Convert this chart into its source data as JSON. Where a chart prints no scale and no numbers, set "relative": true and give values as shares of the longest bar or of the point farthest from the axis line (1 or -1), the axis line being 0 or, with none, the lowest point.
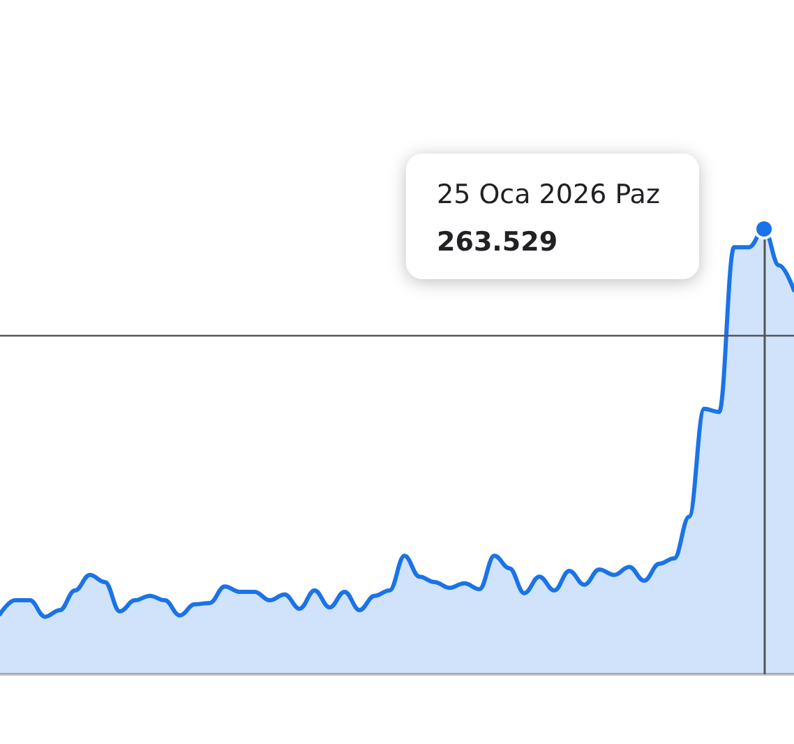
{
  "chart_data": {
    "type": "area",
    "relative": true,
    "categories": [
      null,
      null,
      null,
      null,
      null,
      null,
      null,
      null,
      null,
      null,
      null,
      null,
      null,
      null,
      null,
      null,
      null,
      null,
      null,
      null,
      null,
      null,
      null,
      null,
      null,
      null,
      null,
      null,
      null,
      null,
      null,
      null,
      null,
      null,
      null,
      null,
      null,
      null,
      null,
      null,
      null,
      null,
      null,
      null,
      null,
      null,
      null,
      null,
      null,
      null,
      null,
      null,
      null,
      null
    ],
    "series": [
      {
        "color": "#1a73e8",
        "values": [
          0.135,
          0.166,
          0.166,
          0.129,
          0.144,
          0.188,
          0.223,
          0.207,
          0.141,
          0.166,
          0.176,
          0.166,
          0.132,
          0.157,
          0.16,
          0.197,
          0.185,
          0.185,
          0.166,
          0.179,
          0.147,
          0.188,
          0.15,
          0.185,
          0.144,
          0.176,
          0.188,
          0.266,
          0.219,
          0.207,
          0.194,
          0.204,
          0.191,
          0.266,
          0.238,
          0.182,
          0.219,
          0.188,
          0.232,
          0.201,
          0.235,
          0.223,
          0.241,
          0.21,
          0.248,
          0.26,
          0.354,
          0.596,
          0.589,
          0.959,
          0.959,
          1,
          0.918,
          0.862
        ]
      }
    ],
    "ref_lines": [
      {
        "axis": "y",
        "value": 0.759,
        "color": "#555555"
      }
    ],
    "annotations": [
      "25 Oca 2026 Paz",
      "263.529"
    ],
    "grid": false,
    "marker": "none",
    "line_style": "solid"
  }
}
